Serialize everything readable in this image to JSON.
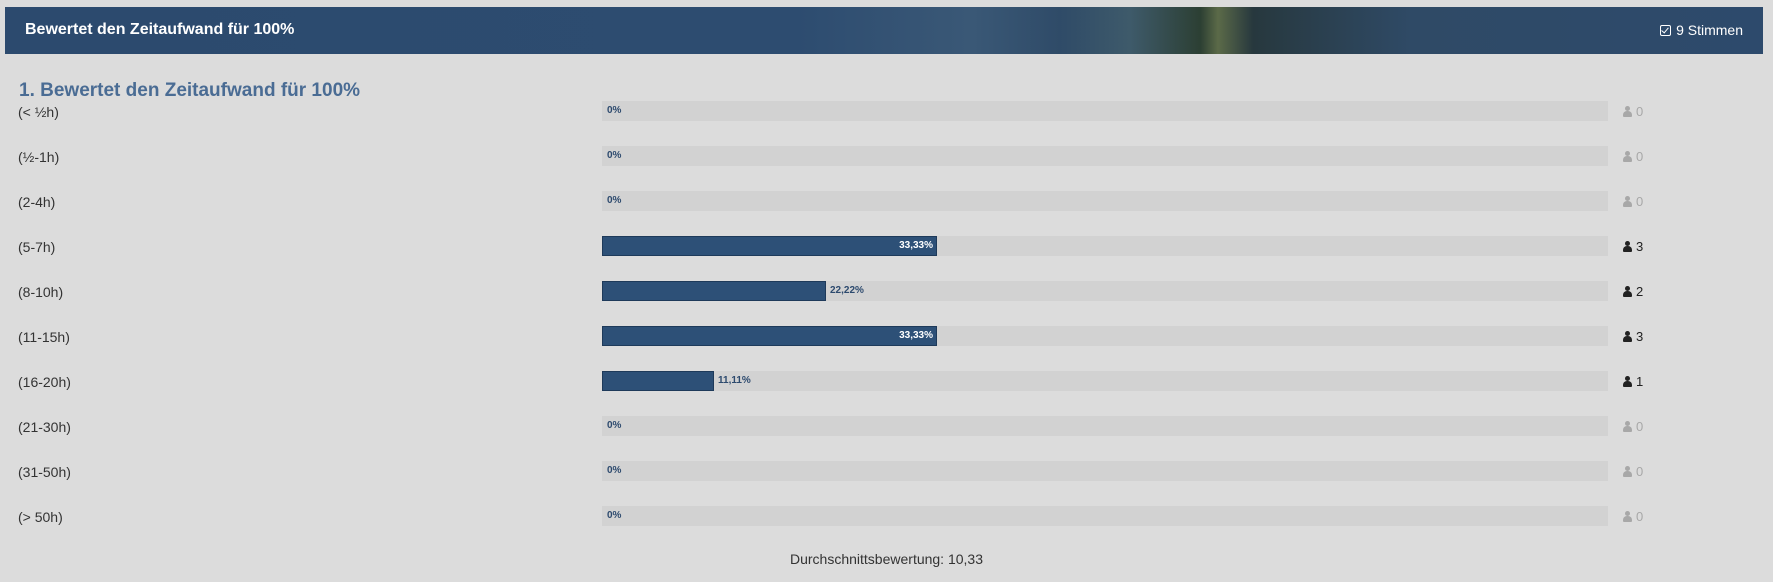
{
  "header": {
    "title": "Bewertet den Zeitaufwand für 100%",
    "votes": "9 Stimmen"
  },
  "question": "1. Bewertet den Zeitaufwand für 100%",
  "options": [
    {
      "label": "(< ½h)",
      "percent_label": "0%",
      "percent": 0,
      "count": "0"
    },
    {
      "label": "(½-1h)",
      "percent_label": "0%",
      "percent": 0,
      "count": "0"
    },
    {
      "label": "(2-4h)",
      "percent_label": "0%",
      "percent": 0,
      "count": "0"
    },
    {
      "label": "(5-7h)",
      "percent_label": "33,33%",
      "percent": 33.33,
      "count": "3"
    },
    {
      "label": "(8-10h)",
      "percent_label": "22,22%",
      "percent": 22.22,
      "count": "2"
    },
    {
      "label": "(11-15h)",
      "percent_label": "33,33%",
      "percent": 33.33,
      "count": "3"
    },
    {
      "label": "(16-20h)",
      "percent_label": "11,11%",
      "percent": 11.11,
      "count": "1"
    },
    {
      "label": "(21-30h)",
      "percent_label": "0%",
      "percent": 0,
      "count": "0"
    },
    {
      "label": "(31-50h)",
      "percent_label": "0%",
      "percent": 0,
      "count": "0"
    },
    {
      "label": "(> 50h)",
      "percent_label": "0%",
      "percent": 0,
      "count": "0"
    }
  ],
  "average": "Durchschnittsbewertung: 10,33",
  "colors": {
    "bar": "#2d5077",
    "title": "#4a6c94",
    "header": "#2c4a6e"
  },
  "icons": {
    "votes": "check-square-icon",
    "count": "user-icon"
  }
}
